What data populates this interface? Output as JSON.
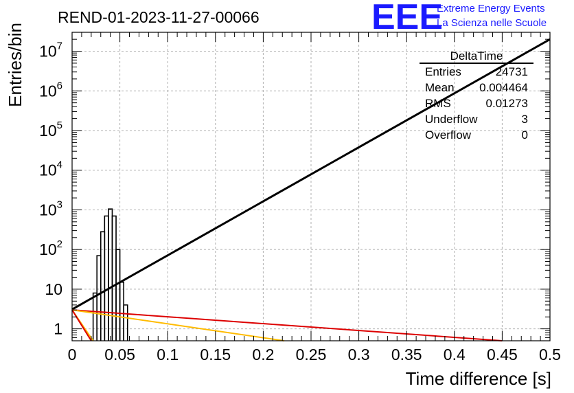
{
  "header": {
    "run_title": "REND-01-2023-11-27-00066",
    "logo": "EEE",
    "logo_line1": "Extreme Energy Events",
    "logo_line2": "La Scienza nelle Scuole"
  },
  "colors": {
    "histogram": "#000000",
    "fit_line": "#000000",
    "red_line": "#dd0000",
    "orange_line": "#ffbb00",
    "logo": "#1a1aff",
    "grid": "#b0b0b0"
  },
  "stats_box": {
    "title": "DeltaTime",
    "rows": [
      {
        "label": "Entries",
        "value": "24731"
      },
      {
        "label": "Mean",
        "value": "0.004464"
      },
      {
        "label": "RMS",
        "value": "0.01273"
      },
      {
        "label": "Underflow",
        "value": "3"
      },
      {
        "label": "Overflow",
        "value": "0"
      }
    ]
  },
  "chart_data": {
    "type": "histogram",
    "title": "REND-01-2023-11-27-00066",
    "xlabel": "Time difference [s]",
    "ylabel": "Entries/bin",
    "xlim": [
      0,
      0.5
    ],
    "ylim": [
      0.5,
      30000000
    ],
    "yscale": "log",
    "grid": true,
    "x_ticks": [
      "0",
      "0.05",
      "0.1",
      "0.15",
      "0.2",
      "0.25",
      "0.3",
      "0.35",
      "0.4",
      "0.45",
      "0.5"
    ],
    "y_ticks": [
      {
        "base": "1",
        "exp": ""
      },
      {
        "base": "10",
        "exp": ""
      },
      {
        "base": "10",
        "exp": "2"
      },
      {
        "base": "10",
        "exp": "3"
      },
      {
        "base": "10",
        "exp": "4"
      },
      {
        "base": "10",
        "exp": "5"
      },
      {
        "base": "10",
        "exp": "6"
      },
      {
        "base": "10",
        "exp": "7"
      }
    ],
    "histogram": {
      "bin_edges": [
        0.022,
        0.026,
        0.03,
        0.034,
        0.038,
        0.042,
        0.046,
        0.05,
        0.054,
        0.058
      ],
      "counts": [
        8,
        70,
        280,
        700,
        1050,
        700,
        100,
        15,
        4
      ]
    },
    "lines": [
      {
        "color": "#000000",
        "x": [
          0.0,
          0.5
        ],
        "y": [
          3.1,
          20000000
        ]
      },
      {
        "color": "#dd0000",
        "x": [
          0.0,
          0.45
        ],
        "y": [
          3.0,
          0.5
        ]
      },
      {
        "color": "#ffbb00",
        "x": [
          0.0,
          0.222
        ],
        "y": [
          3.0,
          0.5
        ]
      },
      {
        "color": "#ffbb00",
        "x": [
          0.0,
          0.022
        ],
        "y": [
          3.0,
          0.5
        ]
      },
      {
        "color": "#dd0000",
        "x": [
          0.0,
          0.02
        ],
        "y": [
          3.0,
          0.5
        ]
      }
    ]
  }
}
